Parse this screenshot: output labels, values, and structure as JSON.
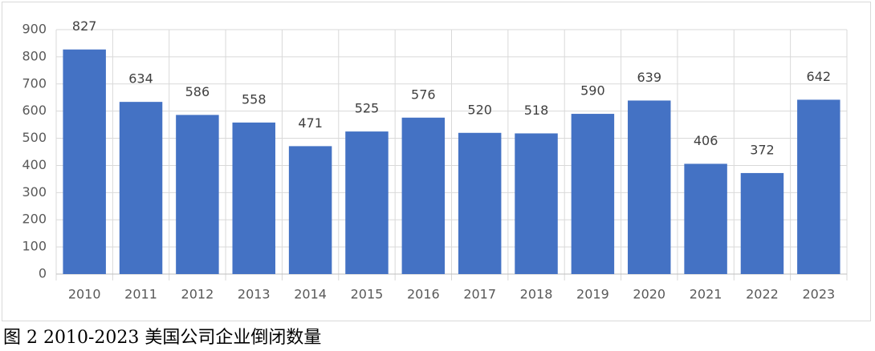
{
  "chart_data": {
    "type": "bar",
    "caption": "图 2 2010-2023 美国公司企业倒闭数量",
    "categories": [
      "2010",
      "2011",
      "2012",
      "2013",
      "2014",
      "2015",
      "2016",
      "2017",
      "2018",
      "2019",
      "2020",
      "2021",
      "2022",
      "2023"
    ],
    "values": [
      827,
      634,
      586,
      558,
      471,
      525,
      576,
      520,
      518,
      590,
      639,
      406,
      372,
      642
    ],
    "color": "#4472c4",
    "ylim": [
      0,
      900
    ],
    "yticks": [
      0,
      100,
      200,
      300,
      400,
      500,
      600,
      700,
      800,
      900
    ],
    "grid": true
  }
}
